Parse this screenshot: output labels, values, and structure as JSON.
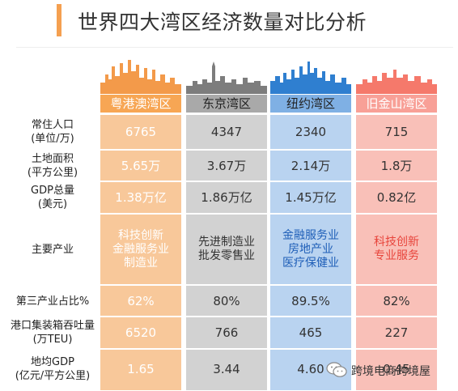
{
  "title": "世界四大湾区经济数量对比分析",
  "colors": {
    "title_bar": "#f5a050",
    "guangdong": "#f39a4a",
    "tokyo": "#7d7d7d",
    "newyork": "#2f7fd0",
    "sanfrancisco": "#f5796b"
  },
  "columns": [
    {
      "name": "粤港澳湾区"
    },
    {
      "name": "东京湾区"
    },
    {
      "name": "纽约湾区"
    },
    {
      "name": "旧金山湾区"
    }
  ],
  "rows": [
    {
      "label_lines": [
        "常住人口",
        "(单位/万)"
      ],
      "values": [
        "6765",
        "4347",
        "2340",
        "715"
      ]
    },
    {
      "label_lines": [
        "土地面积",
        "(平方公里)"
      ],
      "values": [
        "5.65万",
        "3.67万",
        "2.14万",
        "1.8万"
      ]
    },
    {
      "label_lines": [
        "GDP总量",
        "(美元)"
      ],
      "values": [
        "1.38万亿",
        "1.86万亿",
        "1.45万亿",
        "0.82亿"
      ]
    },
    {
      "label_lines": [
        "主要产业"
      ],
      "values": [
        [
          "科技创新",
          "金融服务业",
          "制造业"
        ],
        [
          "先进制造业",
          "批发零售业"
        ],
        [
          "金融服务业",
          "房地产业",
          "医疗保健业"
        ],
        [
          "科技创新",
          "专业服务"
        ]
      ]
    },
    {
      "label_lines": [
        "第三产业占比%"
      ],
      "values": [
        "62%",
        "80%",
        "89.5%",
        "82%"
      ]
    },
    {
      "label_lines": [
        "港口集装箱吞吐量",
        "(万TEU)"
      ],
      "values": [
        "6520",
        "766",
        "465",
        "227"
      ]
    },
    {
      "label_lines": [
        "地均GDP",
        "(亿元/平方公里)"
      ],
      "values": [
        "1.65",
        "3.44",
        "4.60",
        "0.45"
      ]
    }
  ],
  "watermark": {
    "icon": "wechat-icon",
    "text": "跨境电商跨境屋"
  }
}
